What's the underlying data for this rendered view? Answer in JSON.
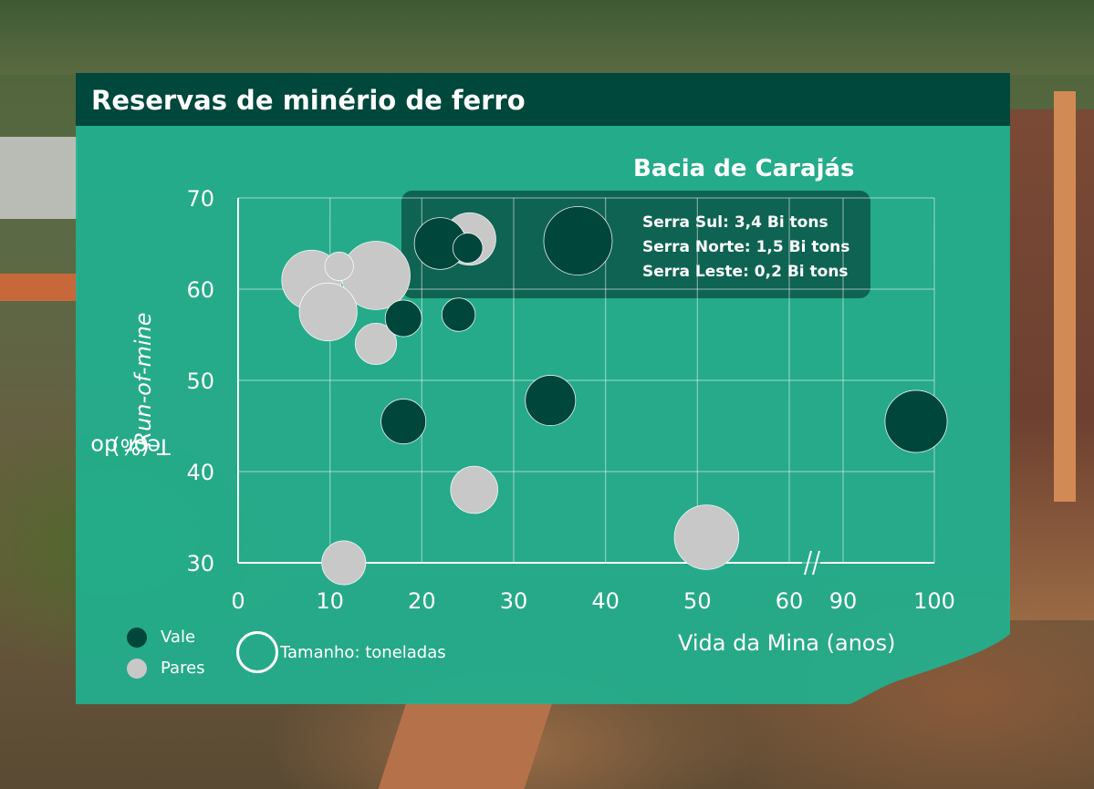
{
  "title": "Reservas de minério de ferro",
  "annotation": {
    "title": "Bacia de Carajás",
    "lines": [
      "Serra Sul: 3,4 Bi tons",
      "Serra Norte: 1,5 Bi tons",
      "Serra Leste: 0,2 Bi tons"
    ]
  },
  "legend": {
    "vale": "Vale",
    "pares": "Pares",
    "size": "Tamanho: toneladas"
  },
  "axis": {
    "ylabel_prefix": "Teor do ",
    "ylabel_italic": "Run-of-mine",
    "ylabel_suffix": " (%)",
    "xlabel": "Vida da Mina (anos)"
  },
  "colors": {
    "panel": "#1fb291",
    "header": "#00473c",
    "vale": "#01463b",
    "pares": "#c8c8c8",
    "grid": "#ffffff"
  },
  "chart_data": {
    "type": "scatter",
    "title": "Bacia de Carajás",
    "xlabel": "Vida da Mina (anos)",
    "ylabel": "Teor do Run-of-mine (%)",
    "x_ticks": [
      "0",
      "10",
      "20",
      "30",
      "40",
      "50",
      "60",
      "90",
      "100"
    ],
    "x_tick_values": [
      0,
      10,
      20,
      30,
      40,
      50,
      60,
      90,
      100
    ],
    "x_axis_break": "60-90",
    "y_ticks": [
      "30",
      "40",
      "50",
      "60",
      "70"
    ],
    "ylim": [
      30,
      70
    ],
    "grid": true,
    "size_encoding": "toneladas",
    "series": [
      {
        "name": "Vale",
        "points": [
          {
            "x": 22,
            "y": 65,
            "size": 3.6
          },
          {
            "x": 25,
            "y": 64.5,
            "size": 1.2
          },
          {
            "x": 37,
            "y": 65.3,
            "size": 6.3
          },
          {
            "x": 18,
            "y": 56.8,
            "size": 1.8
          },
          {
            "x": 24,
            "y": 57.2,
            "size": 1.5
          },
          {
            "x": 34,
            "y": 47.8,
            "size": 3.4
          },
          {
            "x": 18,
            "y": 45.5,
            "size": 2.7
          },
          {
            "x": 98,
            "y": 45.5,
            "size": 5.2
          }
        ]
      },
      {
        "name": "Pares",
        "points": [
          {
            "x": 25.2,
            "y": 65.5,
            "size": 3.7
          },
          {
            "x": 8,
            "y": 61,
            "size": 4.8
          },
          {
            "x": 15,
            "y": 61.5,
            "size": 6.3
          },
          {
            "x": 11,
            "y": 62.5,
            "size": 1.1
          },
          {
            "x": 9.8,
            "y": 57.5,
            "size": 4.5
          },
          {
            "x": 15,
            "y": 54,
            "size": 2.3
          },
          {
            "x": 25.7,
            "y": 38,
            "size": 3.0
          },
          {
            "x": 51,
            "y": 32.8,
            "size": 5.6
          },
          {
            "x": 11.5,
            "y": 30,
            "size": 2.6
          }
        ]
      }
    ]
  }
}
